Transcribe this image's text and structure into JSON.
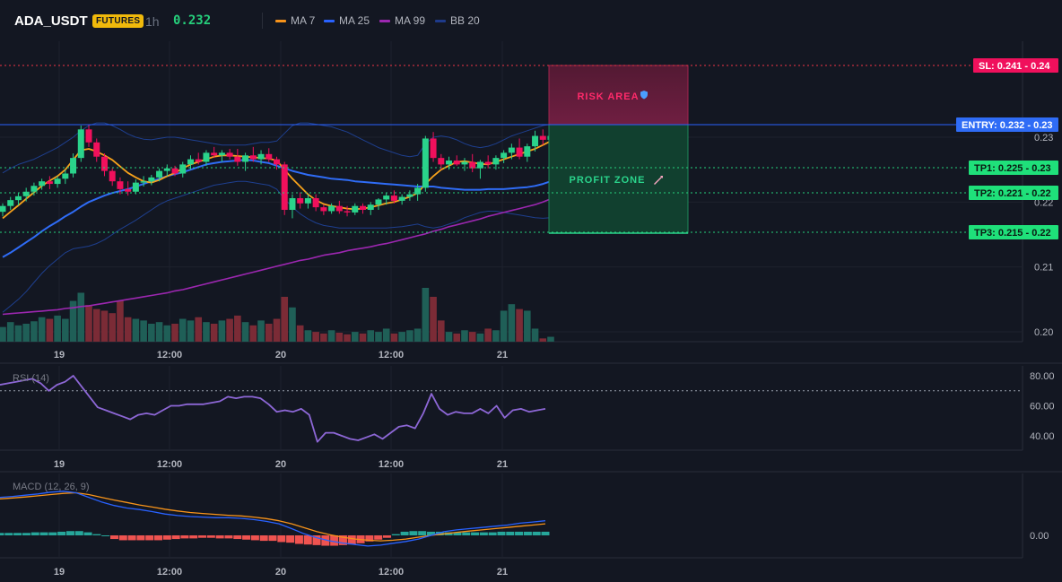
{
  "header": {
    "symbol": "ADA_USDT",
    "badge": "FUTURES",
    "interval": "1h",
    "price": "0.232",
    "legend": [
      {
        "label": "MA 7",
        "color": "#f7931a"
      },
      {
        "label": "MA 25",
        "color": "#2962ff"
      },
      {
        "label": "MA 99",
        "color": "#9c27b0"
      },
      {
        "label": "BB 20",
        "color": "#1e3a8a"
      }
    ]
  },
  "colors": {
    "up": "#26a69a",
    "upBody": "#2ad38b",
    "down": "#f23645",
    "downBody": "#f0105c",
    "ma7": "#f7a21b",
    "ma25": "#2f6cf6",
    "ma99": "#9c27b0",
    "bb": "#1e3f8f",
    "volUp": "#1f5f57",
    "volDown": "#7b2b36",
    "rsi": "#8d67d6",
    "macd": "#2962ff",
    "signal": "#f7931a",
    "histUp": "#26a69a",
    "histDown": "#ef5350"
  },
  "time_labels": [
    "19",
    "12:00",
    "20",
    "12:00",
    "21"
  ],
  "annotations": {
    "risk": "RISK AREA",
    "profit": "PROFIT ZONE",
    "sl": "SL: 0.241 - 0.24",
    "entry": "ENTRY: 0.232 - 0.23",
    "tp1": "TP1: 0.225 - 0.23",
    "tp2": "TP2: 0.221 - 0.22",
    "tp3": "TP3: 0.215 - 0.22"
  },
  "chart_data": [
    {
      "type": "candlestick",
      "yaxis_ticks": [
        "0.23",
        "0.22",
        "0.21",
        "0.20"
      ],
      "ylim": [
        0.198,
        0.2435
      ],
      "levels": {
        "sl": 0.241,
        "entry": 0.232,
        "tp1": 0.225,
        "tp2": 0.221,
        "tp3": 0.215
      },
      "candles": [
        [
          0.2185,
          0.2198,
          0.2178,
          0.2194
        ],
        [
          0.2194,
          0.2208,
          0.2188,
          0.2203
        ],
        [
          0.2203,
          0.2215,
          0.2195,
          0.2209
        ],
        [
          0.2209,
          0.2222,
          0.2201,
          0.2216
        ],
        [
          0.2216,
          0.223,
          0.221,
          0.2225
        ],
        [
          0.2225,
          0.2236,
          0.2219,
          0.2232
        ],
        [
          0.2232,
          0.224,
          0.222,
          0.2228
        ],
        [
          0.2228,
          0.224,
          0.2222,
          0.2236
        ],
        [
          0.2236,
          0.225,
          0.2228,
          0.2244
        ],
        [
          0.2244,
          0.2275,
          0.2238,
          0.2268
        ],
        [
          0.2268,
          0.2318,
          0.2262,
          0.2312
        ],
        [
          0.2312,
          0.232,
          0.2285,
          0.2292
        ],
        [
          0.2292,
          0.2298,
          0.2262,
          0.227
        ],
        [
          0.227,
          0.2275,
          0.224,
          0.2248
        ],
        [
          0.2248,
          0.2252,
          0.2225,
          0.2232
        ],
        [
          0.2232,
          0.2238,
          0.2212,
          0.222
        ],
        [
          0.222,
          0.2232,
          0.221,
          0.2216
        ],
        [
          0.2216,
          0.2235,
          0.2212,
          0.223
        ],
        [
          0.223,
          0.224,
          0.2224,
          0.2232
        ],
        [
          0.2232,
          0.2242,
          0.2226,
          0.2238
        ],
        [
          0.2238,
          0.2252,
          0.2232,
          0.2248
        ],
        [
          0.2248,
          0.2258,
          0.224,
          0.2252
        ],
        [
          0.2252,
          0.2256,
          0.224,
          0.2244
        ],
        [
          0.2244,
          0.2262,
          0.2238,
          0.2258
        ],
        [
          0.2258,
          0.2272,
          0.225,
          0.2266
        ],
        [
          0.2266,
          0.2276,
          0.2258,
          0.2262
        ],
        [
          0.2262,
          0.228,
          0.2256,
          0.2276
        ],
        [
          0.2276,
          0.2285,
          0.2268,
          0.2272
        ],
        [
          0.2272,
          0.228,
          0.2262,
          0.2276
        ],
        [
          0.2276,
          0.2282,
          0.2266,
          0.227
        ],
        [
          0.227,
          0.2282,
          0.2256,
          0.2262
        ],
        [
          0.2262,
          0.2276,
          0.2248,
          0.2272
        ],
        [
          0.2272,
          0.2285,
          0.2262,
          0.2266
        ],
        [
          0.2266,
          0.228,
          0.2258,
          0.2274
        ],
        [
          0.2274,
          0.2283,
          0.2262,
          0.2266
        ],
        [
          0.2266,
          0.227,
          0.225,
          0.2258
        ],
        [
          0.2258,
          0.2262,
          0.218,
          0.2188
        ],
        [
          0.2188,
          0.2212,
          0.2175,
          0.2206
        ],
        [
          0.2206,
          0.2215,
          0.219,
          0.2198
        ],
        [
          0.2198,
          0.2212,
          0.219,
          0.2206
        ],
        [
          0.2206,
          0.2212,
          0.2186,
          0.2192
        ],
        [
          0.2192,
          0.2196,
          0.218,
          0.2186
        ],
        [
          0.2186,
          0.2198,
          0.2182,
          0.2194
        ],
        [
          0.2194,
          0.2202,
          0.2182,
          0.2186
        ],
        [
          0.2186,
          0.2194,
          0.2178,
          0.2184
        ],
        [
          0.2184,
          0.2198,
          0.218,
          0.2194
        ],
        [
          0.2194,
          0.2198,
          0.2182,
          0.2188
        ],
        [
          0.2188,
          0.22,
          0.218,
          0.2196
        ],
        [
          0.2196,
          0.2206,
          0.2188,
          0.2204
        ],
        [
          0.2204,
          0.2214,
          0.2196,
          0.221
        ],
        [
          0.221,
          0.2218,
          0.2198,
          0.2202
        ],
        [
          0.2202,
          0.2212,
          0.2196,
          0.2208
        ],
        [
          0.2208,
          0.2218,
          0.2202,
          0.2212
        ],
        [
          0.2212,
          0.2228,
          0.2202,
          0.2222
        ],
        [
          0.2222,
          0.2302,
          0.2216,
          0.2298
        ],
        [
          0.2298,
          0.2308,
          0.2262,
          0.2268
        ],
        [
          0.2268,
          0.2274,
          0.225,
          0.2258
        ],
        [
          0.2258,
          0.227,
          0.225,
          0.2264
        ],
        [
          0.2264,
          0.2272,
          0.2256,
          0.2258
        ],
        [
          0.2258,
          0.2268,
          0.2248,
          0.2262
        ],
        [
          0.2262,
          0.2274,
          0.2246,
          0.2252
        ],
        [
          0.2252,
          0.2265,
          0.2236,
          0.2262
        ],
        [
          0.2262,
          0.2272,
          0.2252,
          0.2258
        ],
        [
          0.2258,
          0.2272,
          0.225,
          0.2268
        ],
        [
          0.2268,
          0.228,
          0.226,
          0.2276
        ],
        [
          0.2276,
          0.229,
          0.2266,
          0.2284
        ],
        [
          0.2284,
          0.2298,
          0.2266,
          0.227
        ],
        [
          0.227,
          0.229,
          0.2262,
          0.2286
        ],
        [
          0.2286,
          0.231,
          0.2278,
          0.2302
        ],
        [
          0.2302,
          0.2312,
          0.2288,
          0.2296
        ],
        [
          0.2296,
          0.2306,
          0.229,
          0.2302
        ]
      ],
      "volume": [
        18,
        24,
        20,
        22,
        25,
        30,
        28,
        32,
        28,
        50,
        60,
        45,
        40,
        38,
        35,
        50,
        30,
        28,
        26,
        22,
        24,
        20,
        22,
        28,
        26,
        30,
        24,
        22,
        26,
        28,
        32,
        24,
        20,
        26,
        22,
        28,
        55,
        42,
        20,
        14,
        12,
        10,
        14,
        11,
        9,
        12,
        10,
        14,
        12,
        16,
        10,
        12,
        14,
        16,
        66,
        55,
        26,
        12,
        10,
        14,
        12,
        10,
        16,
        14,
        38,
        46,
        40,
        38,
        16,
        4,
        6
      ],
      "ma7": [
        0.2175,
        0.2185,
        0.2195,
        0.2205,
        0.2215,
        0.2225,
        0.2233,
        0.224,
        0.225,
        0.2265,
        0.228,
        0.2282,
        0.2278,
        0.2272,
        0.2265,
        0.2255,
        0.2245,
        0.2238,
        0.2232,
        0.223,
        0.2234,
        0.224,
        0.2245,
        0.2252,
        0.2258,
        0.2262,
        0.2266,
        0.227,
        0.2272,
        0.2272,
        0.2271,
        0.227,
        0.2269,
        0.2268,
        0.2267,
        0.2264,
        0.225,
        0.2236,
        0.2224,
        0.2212,
        0.2203,
        0.2197,
        0.2194,
        0.2192,
        0.219,
        0.2189,
        0.219,
        0.2192,
        0.2195,
        0.2198,
        0.22,
        0.2204,
        0.2208,
        0.2214,
        0.2228,
        0.224,
        0.225,
        0.2256,
        0.2262,
        0.2263,
        0.2261,
        0.2259,
        0.2258,
        0.2262,
        0.2266,
        0.227,
        0.2274,
        0.2278,
        0.2282,
        0.2288,
        0.2294
      ],
      "ma25": [
        0.2115,
        0.2122,
        0.213,
        0.2138,
        0.2146,
        0.2155,
        0.2163,
        0.217,
        0.2178,
        0.2185,
        0.2193,
        0.22,
        0.2205,
        0.221,
        0.2214,
        0.2217,
        0.222,
        0.2224,
        0.2228,
        0.2232,
        0.2236,
        0.224,
        0.2243,
        0.2246,
        0.225,
        0.2254,
        0.2258,
        0.226,
        0.2262,
        0.2263,
        0.2264,
        0.2265,
        0.2264,
        0.2262,
        0.226,
        0.2256,
        0.2252,
        0.2248,
        0.2245,
        0.2242,
        0.224,
        0.2238,
        0.2236,
        0.2235,
        0.2234,
        0.2232,
        0.2231,
        0.223,
        0.2229,
        0.2228,
        0.2227,
        0.2226,
        0.2225,
        0.2224,
        0.2224,
        0.2224,
        0.2222,
        0.2221,
        0.222,
        0.2219,
        0.2219,
        0.2219,
        0.222,
        0.222,
        0.222,
        0.2221,
        0.2222,
        0.2223,
        0.2225,
        0.2228,
        0.2232
      ],
      "ma99": [
        0.2027,
        0.2028,
        0.2029,
        0.203,
        0.2031,
        0.2032,
        0.2033,
        0.2034,
        0.2036,
        0.2037,
        0.2039,
        0.204,
        0.2042,
        0.2044,
        0.2046,
        0.2048,
        0.205,
        0.2052,
        0.2054,
        0.2056,
        0.2058,
        0.206,
        0.2063,
        0.2065,
        0.2068,
        0.2071,
        0.2074,
        0.2077,
        0.208,
        0.2083,
        0.2086,
        0.2089,
        0.2092,
        0.2095,
        0.2098,
        0.2101,
        0.2104,
        0.2107,
        0.211,
        0.2112,
        0.2115,
        0.2118,
        0.212,
        0.2122,
        0.2125,
        0.2127,
        0.2129,
        0.2131,
        0.2134,
        0.2136,
        0.2139,
        0.2142,
        0.2145,
        0.2148,
        0.2151,
        0.2155,
        0.2158,
        0.2162,
        0.2165,
        0.2168,
        0.2171,
        0.2174,
        0.2178,
        0.2181,
        0.2184,
        0.2187,
        0.219,
        0.2193,
        0.2196,
        0.22,
        0.2205
      ],
      "bb_upper": [
        0.2245,
        0.2252,
        0.2258,
        0.2262,
        0.2266,
        0.2272,
        0.2278,
        0.2284,
        0.2292,
        0.23,
        0.231,
        0.2318,
        0.2322,
        0.2322,
        0.2318,
        0.2312,
        0.2305,
        0.23,
        0.2297,
        0.2296,
        0.2298,
        0.23,
        0.23,
        0.2298,
        0.2296,
        0.2294,
        0.2292,
        0.229,
        0.2288,
        0.2288,
        0.2288,
        0.2288,
        0.229,
        0.2292,
        0.2292,
        0.2294,
        0.2306,
        0.2318,
        0.2322,
        0.2322,
        0.232,
        0.2318,
        0.2316,
        0.2312,
        0.2308,
        0.2302,
        0.2296,
        0.229,
        0.2284,
        0.228,
        0.2276,
        0.2272,
        0.227,
        0.2272,
        0.229,
        0.23,
        0.2302,
        0.23,
        0.2296,
        0.229,
        0.2286,
        0.2284,
        0.2286,
        0.229,
        0.2296,
        0.2302,
        0.2306,
        0.231,
        0.2314,
        0.2318,
        0.232
      ],
      "bb_lower": [
        0.203,
        0.204,
        0.205,
        0.2062,
        0.2076,
        0.209,
        0.2102,
        0.2112,
        0.2122,
        0.2128,
        0.213,
        0.2132,
        0.2136,
        0.2142,
        0.215,
        0.2158,
        0.2165,
        0.2172,
        0.218,
        0.2188,
        0.2196,
        0.2202,
        0.2206,
        0.221,
        0.2214,
        0.2218,
        0.2222,
        0.2226,
        0.2228,
        0.223,
        0.2232,
        0.2232,
        0.223,
        0.2228,
        0.2226,
        0.222,
        0.2205,
        0.2192,
        0.2182,
        0.2174,
        0.2168,
        0.2164,
        0.2162,
        0.216,
        0.216,
        0.216,
        0.216,
        0.216,
        0.216,
        0.216,
        0.2161,
        0.2162,
        0.2164,
        0.2166,
        0.2162,
        0.216,
        0.2162,
        0.2166,
        0.217,
        0.2176,
        0.218,
        0.2184,
        0.2186,
        0.2186,
        0.2184,
        0.2182,
        0.218,
        0.2178,
        0.2176,
        0.2175,
        0.2176
      ]
    },
    {
      "type": "line",
      "title": "RSI (14)",
      "yaxis_ticks": [
        "80.00",
        "60.00",
        "40.00"
      ],
      "ylim": [
        30,
        85
      ],
      "reference_line": 70,
      "values": [
        74,
        75,
        76,
        77,
        78,
        75,
        70,
        74,
        76,
        80,
        73,
        66,
        59,
        57,
        55,
        53,
        51,
        54,
        55,
        54,
        57,
        60,
        60,
        61,
        61,
        61,
        62,
        63,
        66,
        65,
        66,
        66,
        65,
        61,
        56,
        57,
        56,
        58,
        54,
        36,
        42,
        42,
        40,
        38,
        37,
        39,
        41,
        38,
        42,
        46,
        47,
        45,
        55,
        68,
        58,
        54,
        56,
        55,
        55,
        58,
        55,
        60,
        52,
        57,
        58,
        56,
        57,
        58
      ]
    },
    {
      "type": "line",
      "title": "MACD (12, 26, 9)",
      "yaxis_ticks": [
        "0.00"
      ],
      "ylim": [
        -0.0006,
        0.0018
      ],
      "macd": [
        0.00125,
        0.00128,
        0.00132,
        0.00136,
        0.00142,
        0.00145,
        0.0014,
        0.00125,
        0.0011,
        0.00098,
        0.0009,
        0.00085,
        0.00078,
        0.0007,
        0.00065,
        0.00062,
        0.0006,
        0.00058,
        0.00058,
        0.00056,
        0.00052,
        0.00046,
        0.00038,
        0.00022,
        5e-05,
        -8e-05,
        -0.00018,
        -0.00025,
        -0.0003,
        -0.00035,
        -0.00032,
        -0.00026,
        -0.0002,
        -0.00012,
        0.0,
        0.00012,
        0.00018,
        0.00022,
        0.00026,
        0.0003,
        0.00034,
        0.0004,
        0.00044,
        0.00048
      ],
      "signal": [
        0.0012,
        0.00123,
        0.00126,
        0.0013,
        0.00134,
        0.00138,
        0.0014,
        0.00134,
        0.00125,
        0.00116,
        0.00108,
        0.001,
        0.00093,
        0.00086,
        0.0008,
        0.00075,
        0.00072,
        0.00069,
        0.00066,
        0.00064,
        0.0006,
        0.00055,
        0.00048,
        0.00038,
        0.00025,
        0.00012,
        2e-05,
        -6e-05,
        -0.00012,
        -0.00016,
        -0.00018,
        -0.00016,
        -0.00012,
        -6e-05,
        0.0,
        5e-05,
        0.0001,
        0.00014,
        0.00018,
        0.00022,
        0.00026,
        0.0003,
        0.00034,
        0.00038
      ],
      "histogram": [
        8e-05,
        8e-05,
        8e-05,
        8e-05,
        0.0001,
        0.0001,
        0.0001,
        0.00012,
        0.00014,
        0.00014,
        0.0001,
        4e-05,
        0.0,
        -0.00012,
        -0.00016,
        -0.00016,
        -0.00016,
        -0.00016,
        -0.00016,
        -0.00014,
        -0.00012,
        -0.0001,
        -0.0001,
        -8e-05,
        -8e-05,
        -0.0001,
        -0.0001,
        -0.00012,
        -0.00014,
        -0.00016,
        -0.00018,
        -0.00018,
        -0.00022,
        -0.00024,
        -0.00028,
        -0.0003,
        -0.00032,
        -0.00034,
        -0.00034,
        -0.00032,
        -0.0003,
        -0.00026,
        -0.0002,
        -0.00014,
        -8e-05,
        4e-05,
        0.00012,
        0.00014,
        0.00014,
        0.00012,
        0.00012,
        0.0001,
        0.0001,
        0.0001,
        0.0001,
        0.0001,
        0.0001,
        0.00012,
        0.00012,
        0.00012,
        0.00012,
        0.00012,
        0.00012
      ]
    }
  ]
}
